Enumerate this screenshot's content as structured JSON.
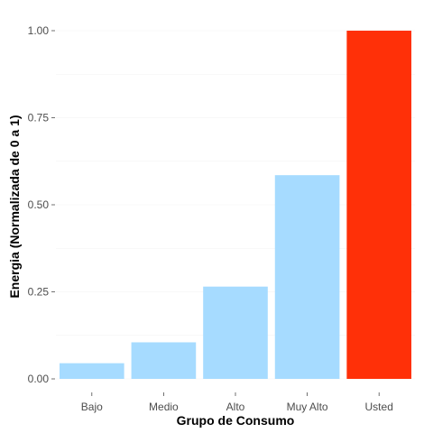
{
  "chart_data": {
    "type": "bar",
    "title": "",
    "xlabel": "Grupo de Consumo",
    "ylabel": "Energia (Normalizada de 0 a 1)",
    "categories": [
      "Bajo",
      "Medio",
      "Alto",
      "Muy Alto",
      "Usted"
    ],
    "values": [
      0.045,
      0.105,
      0.265,
      0.585,
      1.0
    ],
    "colors": [
      "#a6dbff",
      "#a6dbff",
      "#a6dbff",
      "#a6dbff",
      "#ff3008"
    ],
    "ylim": [
      0,
      1
    ],
    "yticks": [
      0,
      0.25,
      0.5,
      0.75,
      1.0
    ],
    "ytick_labels": [
      "0.00",
      "0.25",
      "0.50",
      "0.75",
      "1.00"
    ],
    "grid": true,
    "legend": "none"
  }
}
